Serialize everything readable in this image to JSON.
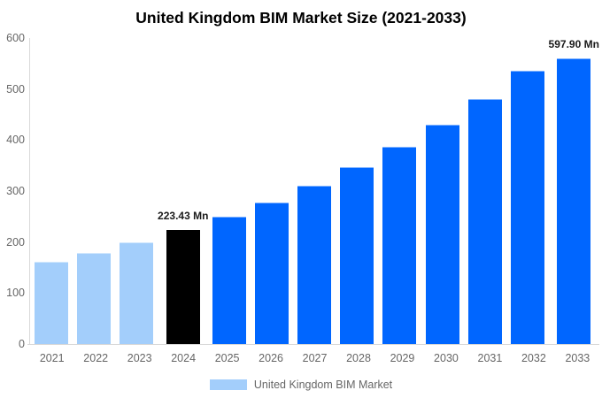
{
  "title": "United Kingdom BIM Market Size (2021-2033)",
  "legend": {
    "label": "United Kingdom BIM Market"
  },
  "colors": {
    "historical_bar": "#A3CEFB",
    "highlight_bar": "#000000",
    "forecast_bar": "#0066FF",
    "axis_line": "#D9D9D9",
    "tick_label": "#666666",
    "data_label": "#1A1A1A",
    "title_text": "#000000",
    "background": "#FFFFFF"
  },
  "chart_data": {
    "type": "bar",
    "title": "United Kingdom BIM Market Size (2021-2033)",
    "series_name": "United Kingdom BIM Market",
    "unit": "Mn",
    "categories": [
      "2021",
      "2022",
      "2023",
      "2024",
      "2025",
      "2026",
      "2027",
      "2028",
      "2029",
      "2030",
      "2031",
      "2032",
      "2033"
    ],
    "values": [
      160.9,
      179.5,
      200.3,
      223.43,
      249.3,
      278.1,
      310.2,
      346.1,
      386.0,
      430.7,
      480.5,
      536.0,
      597.9
    ],
    "bar_color_roles": [
      "historical",
      "historical",
      "historical",
      "highlight",
      "forecast",
      "forecast",
      "forecast",
      "forecast",
      "forecast",
      "forecast",
      "forecast",
      "forecast",
      "forecast"
    ],
    "data_labels": [
      "",
      "",
      "",
      "223.43 Mn",
      "",
      "",
      "",
      "",
      "",
      "",
      "",
      "",
      "597.90 Mn"
    ],
    "xlabel": "",
    "ylabel": "",
    "ylim": [
      0,
      600
    ],
    "yticks": [
      0,
      100,
      200,
      300,
      400,
      500,
      600
    ],
    "grid": false,
    "legend_position": "bottom"
  }
}
